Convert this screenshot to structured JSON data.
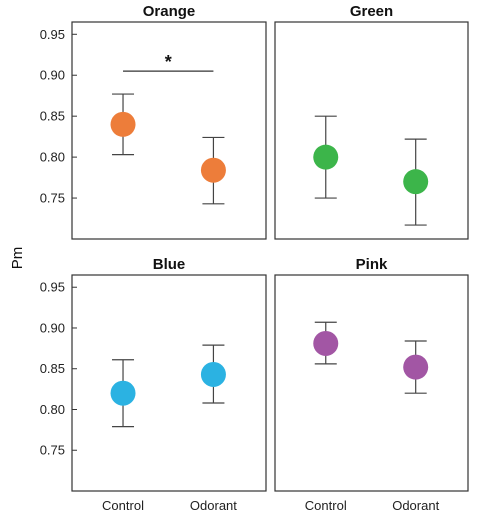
{
  "chart_data": {
    "type": "scatter",
    "ylabel": "Pm",
    "categories": [
      "Control",
      "Odorant"
    ],
    "ylim": [
      0.7,
      0.965
    ],
    "yticks": [
      "0.75",
      "0.80",
      "0.85",
      "0.90",
      "0.95"
    ],
    "grid": false,
    "panels": [
      {
        "title": "Orange",
        "color": "#ED7D3A",
        "mean": [
          0.84,
          0.784
        ],
        "lower": [
          0.803,
          0.743
        ],
        "upper": [
          0.877,
          0.824
        ],
        "significance": {
          "label": "*",
          "from": "Control",
          "to": "Odorant",
          "y": 0.905
        }
      },
      {
        "title": "Green",
        "color": "#3CB54A",
        "mean": [
          0.8,
          0.77
        ],
        "lower": [
          0.75,
          0.717
        ],
        "upper": [
          0.85,
          0.822
        ]
      },
      {
        "title": "Blue",
        "color": "#2BB2E2",
        "mean": [
          0.82,
          0.843
        ],
        "lower": [
          0.779,
          0.808
        ],
        "upper": [
          0.861,
          0.879
        ]
      },
      {
        "title": "Pink",
        "color": "#A256A4",
        "mean": [
          0.881,
          0.852
        ],
        "lower": [
          0.856,
          0.82
        ],
        "upper": [
          0.907,
          0.884
        ]
      }
    ]
  }
}
